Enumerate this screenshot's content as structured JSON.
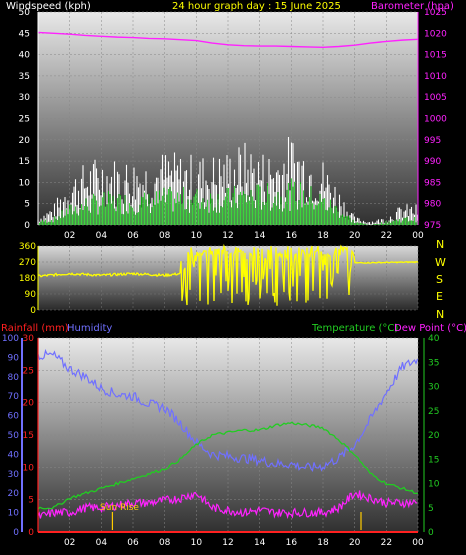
{
  "colors": {
    "background": "#000000",
    "axis": "#ffffff",
    "wind_gust": "#ffffff",
    "wind_avg": "#00c800",
    "barometer": "#ff22ff",
    "wind_dir": "#ffff00",
    "rain": "#ff2020",
    "humidity": "#7070ff",
    "temperature": "#22cc22",
    "dew_point": "#ff22ff",
    "sun": "#ffcc00",
    "xtick": "#ffff00"
  },
  "header": {
    "windspeed_label": "Windspeed (kph)",
    "title": "24 hour graph day : 15 June 2025",
    "barometer_label": "Barometer (hpa)",
    "rainfall_label": "Rainfall (mm)",
    "humidity_label": "Humidity",
    "temperature_label": "Temperature (°C)",
    "dewpoint_label": "Dew Point (°C)"
  },
  "compass": [
    "N",
    "W",
    "S",
    "E",
    "N"
  ],
  "sunrise_label": "Sun Rise",
  "chart_data": [
    {
      "type": "area",
      "name": "wind",
      "x_ticks": [
        "02",
        "04",
        "06",
        "08",
        "10",
        "12",
        "14",
        "16",
        "18",
        "20",
        "22",
        "00"
      ],
      "y_left_ticks": [
        0,
        5,
        10,
        15,
        20,
        25,
        30,
        35,
        40,
        45,
        50
      ],
      "y_left_range": [
        0,
        50
      ],
      "y_right_ticks": [
        975,
        980,
        985,
        990,
        995,
        1000,
        1005,
        1010,
        1015,
        1020,
        1025
      ],
      "y_right_range": [
        975,
        1025
      ],
      "gust_envelope": [
        [
          0,
          2
        ],
        [
          1,
          5
        ],
        [
          2,
          12
        ],
        [
          3,
          15
        ],
        [
          4,
          17
        ],
        [
          5,
          16
        ],
        [
          6,
          16
        ],
        [
          7,
          16
        ],
        [
          8,
          18
        ],
        [
          9,
          17
        ],
        [
          10,
          17
        ],
        [
          11,
          17
        ],
        [
          12,
          18
        ],
        [
          13,
          20
        ],
        [
          14,
          18
        ],
        [
          15,
          18
        ],
        [
          16,
          22
        ],
        [
          17,
          19
        ],
        [
          18,
          16
        ],
        [
          19,
          9
        ],
        [
          20,
          2
        ],
        [
          21,
          1
        ],
        [
          22,
          2
        ],
        [
          23,
          5
        ],
        [
          24,
          5
        ]
      ],
      "avg_envelope": [
        [
          0,
          1
        ],
        [
          1,
          2
        ],
        [
          2,
          5
        ],
        [
          3,
          7
        ],
        [
          4,
          8
        ],
        [
          5,
          8
        ],
        [
          6,
          8
        ],
        [
          7,
          8
        ],
        [
          8,
          9
        ],
        [
          9,
          9
        ],
        [
          10,
          9
        ],
        [
          11,
          9
        ],
        [
          12,
          9
        ],
        [
          13,
          10
        ],
        [
          14,
          10
        ],
        [
          15,
          10
        ],
        [
          16,
          11
        ],
        [
          17,
          10
        ],
        [
          18,
          8
        ],
        [
          19,
          5
        ],
        [
          20,
          1
        ],
        [
          21,
          0
        ],
        [
          22,
          1
        ],
        [
          23,
          2
        ],
        [
          24,
          2
        ]
      ],
      "barometer": [
        [
          0,
          1020.2
        ],
        [
          1,
          1020.0
        ],
        [
          2,
          1019.8
        ],
        [
          3,
          1019.5
        ],
        [
          4,
          1019.3
        ],
        [
          5,
          1019.1
        ],
        [
          6,
          1019.0
        ],
        [
          7,
          1018.8
        ],
        [
          8,
          1018.7
        ],
        [
          9,
          1018.5
        ],
        [
          10,
          1018.3
        ],
        [
          11,
          1017.7
        ],
        [
          12,
          1017.3
        ],
        [
          13,
          1017.1
        ],
        [
          14,
          1017.0
        ],
        [
          15,
          1017.0
        ],
        [
          16,
          1016.9
        ],
        [
          17,
          1016.8
        ],
        [
          18,
          1016.7
        ],
        [
          19,
          1016.9
        ],
        [
          20,
          1017.2
        ],
        [
          21,
          1017.7
        ],
        [
          22,
          1018.1
        ],
        [
          23,
          1018.4
        ],
        [
          24,
          1018.6
        ]
      ]
    },
    {
      "type": "scatter",
      "name": "wind_direction",
      "x_ticks": [
        "02",
        "04",
        "06",
        "08",
        "10",
        "12",
        "14",
        "16",
        "18",
        "20",
        "22",
        "00"
      ],
      "y_ticks": [
        0,
        90,
        180,
        270,
        360
      ],
      "y_range": [
        0,
        360
      ],
      "steady": [
        [
          0,
          190
        ],
        [
          2,
          205
        ],
        [
          4,
          195
        ],
        [
          6,
          205
        ],
        [
          8,
          195
        ],
        [
          9,
          205
        ]
      ],
      "erratic_range": [
        [
          9,
          20
        ],
        [
          20,
          360
        ]
      ],
      "settled": [
        [
          20,
          265
        ],
        [
          24,
          270
        ]
      ]
    },
    {
      "type": "line",
      "name": "rain_humidity_temp",
      "x_ticks": [
        "02",
        "04",
        "06",
        "08",
        "10",
        "12",
        "14",
        "16",
        "18",
        "20",
        "22",
        "00"
      ],
      "y_humidity_ticks": [
        0,
        10,
        20,
        30,
        40,
        50,
        60,
        70,
        80,
        90,
        100
      ],
      "y_rain_ticks": [
        0,
        5,
        10,
        15,
        20,
        25,
        30
      ],
      "y_temp_ticks": [
        0,
        5,
        10,
        15,
        20,
        25,
        30,
        35,
        40
      ],
      "humidity_range": [
        0,
        100
      ],
      "rain_range": [
        0,
        30
      ],
      "temp_range": [
        0,
        40
      ],
      "humidity": [
        [
          0,
          91
        ],
        [
          1,
          91
        ],
        [
          2,
          84
        ],
        [
          3,
          80
        ],
        [
          4,
          74
        ],
        [
          5,
          71
        ],
        [
          6,
          70
        ],
        [
          7,
          66
        ],
        [
          8,
          64
        ],
        [
          9,
          56
        ],
        [
          10,
          46
        ],
        [
          11,
          40
        ],
        [
          12,
          39
        ],
        [
          13,
          38
        ],
        [
          14,
          37
        ],
        [
          15,
          35
        ],
        [
          16,
          35
        ],
        [
          17,
          33
        ],
        [
          18,
          34
        ],
        [
          19,
          38
        ],
        [
          20,
          45
        ],
        [
          21,
          58
        ],
        [
          22,
          72
        ],
        [
          23,
          85
        ],
        [
          24,
          89
        ]
      ],
      "temperature": [
        [
          0,
          5
        ],
        [
          1,
          5
        ],
        [
          2,
          7
        ],
        [
          3,
          8
        ],
        [
          4,
          9
        ],
        [
          5,
          10
        ],
        [
          6,
          11
        ],
        [
          7,
          12
        ],
        [
          8,
          13
        ],
        [
          9,
          15
        ],
        [
          10,
          18
        ],
        [
          11,
          20
        ],
        [
          12,
          20.5
        ],
        [
          13,
          21
        ],
        [
          14,
          21
        ],
        [
          15,
          22
        ],
        [
          16,
          22.5
        ],
        [
          17,
          22
        ],
        [
          18,
          21.5
        ],
        [
          19,
          19
        ],
        [
          20,
          16
        ],
        [
          21,
          12
        ],
        [
          22,
          10
        ],
        [
          23,
          9
        ],
        [
          24,
          8
        ]
      ],
      "dew_point": [
        [
          0,
          3
        ],
        [
          1,
          4
        ],
        [
          2,
          4
        ],
        [
          3,
          5
        ],
        [
          4,
          5
        ],
        [
          5,
          5.5
        ],
        [
          6,
          6
        ],
        [
          7,
          6
        ],
        [
          8,
          6.5
        ],
        [
          9,
          7
        ],
        [
          10,
          8
        ],
        [
          11,
          5
        ],
        [
          12,
          4.5
        ],
        [
          13,
          4
        ],
        [
          14,
          4.5
        ],
        [
          15,
          4
        ],
        [
          16,
          4
        ],
        [
          17,
          4
        ],
        [
          18,
          4
        ],
        [
          19,
          5
        ],
        [
          20,
          8
        ],
        [
          21,
          7
        ],
        [
          22,
          6
        ],
        [
          23,
          6
        ],
        [
          24,
          6
        ]
      ],
      "rainfall": [
        [
          0,
          0
        ],
        [
          24,
          0
        ]
      ],
      "sunrise_hour": 4.7,
      "sunset_hour": 20.4
    }
  ]
}
